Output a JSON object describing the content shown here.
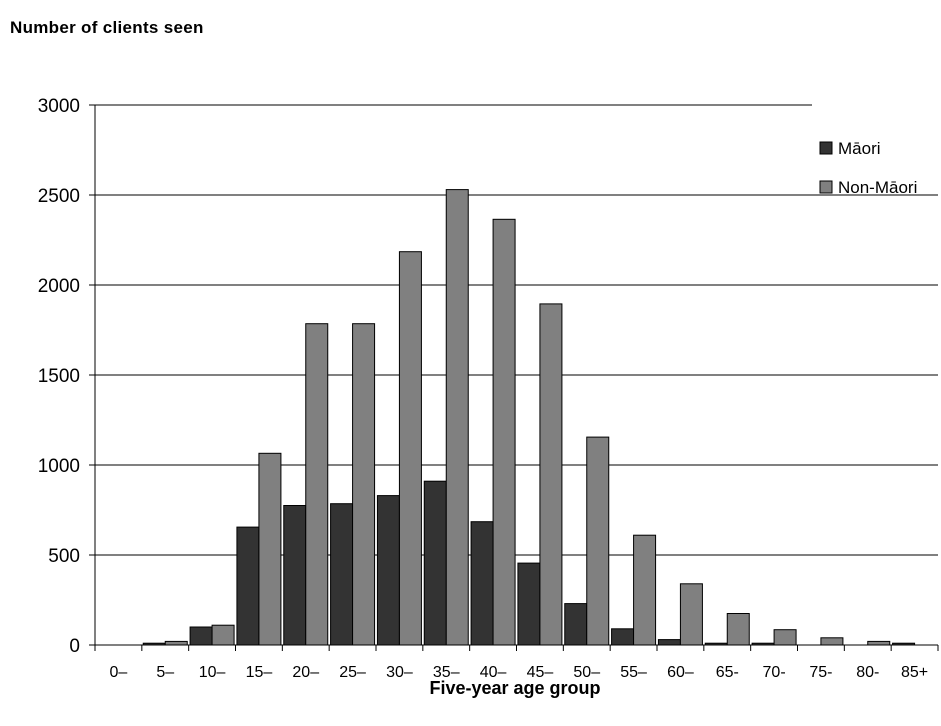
{
  "chart_data": {
    "type": "bar",
    "ylabel": "Number of clients seen",
    "xlabel": "Five-year age group",
    "categories": [
      "0–",
      "5–",
      "10–",
      "15–",
      "20–",
      "25–",
      "30–",
      "35–",
      "40–",
      "45–",
      "50–",
      "55–",
      "60–",
      "65-",
      "70-",
      "75-",
      "80-",
      "85+"
    ],
    "series": [
      {
        "name": "Māori",
        "color": "#333333",
        "values": [
          0,
          10,
          100,
          655,
          775,
          785,
          830,
          910,
          685,
          455,
          230,
          90,
          30,
          10,
          10,
          0,
          0,
          10
        ]
      },
      {
        "name": "Non-Māori",
        "color": "#808080",
        "values": [
          0,
          20,
          110,
          1065,
          1785,
          1785,
          2185,
          2530,
          2365,
          1895,
          1155,
          610,
          340,
          175,
          85,
          40,
          20,
          0
        ]
      }
    ],
    "ylim": [
      0,
      3000
    ],
    "yticks": [
      0,
      500,
      1000,
      1500,
      2000,
      2500,
      3000
    ],
    "grid": true,
    "legend": "top-right"
  }
}
